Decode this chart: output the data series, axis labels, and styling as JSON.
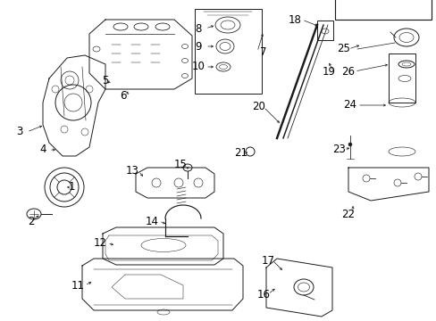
{
  "background_color": "#ffffff",
  "fig_width": 4.89,
  "fig_height": 3.6,
  "dpi": 100,
  "line_color": "#1a1a1a",
  "text_color": "#000000"
}
